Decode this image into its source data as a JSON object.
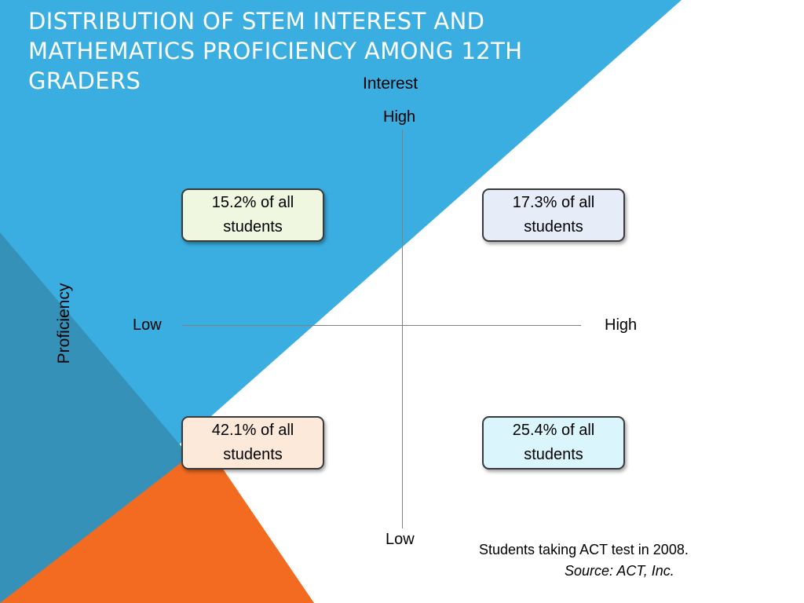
{
  "title": "Distribution of STEM Interest and Mathematics Proficiency among 12th Graders",
  "axes": {
    "interest_label": "Interest",
    "proficiency_label": "Proficiency",
    "interest_high": "High",
    "interest_low": "Low",
    "proficiency_low": "Low",
    "proficiency_high": "High"
  },
  "quadrants": {
    "top_left": "15.2% of all students",
    "top_right": "17.3% of all students",
    "bottom_left": "42.1% of all students",
    "bottom_right": "25.4% of all students"
  },
  "footnote": {
    "text": "Students taking ACT test in 2008.",
    "source": "Source: ACT, Inc."
  },
  "colors": {
    "blue": "#3aaee0",
    "dark_blue": "#3591b8",
    "orange": "#f26b21"
  }
}
